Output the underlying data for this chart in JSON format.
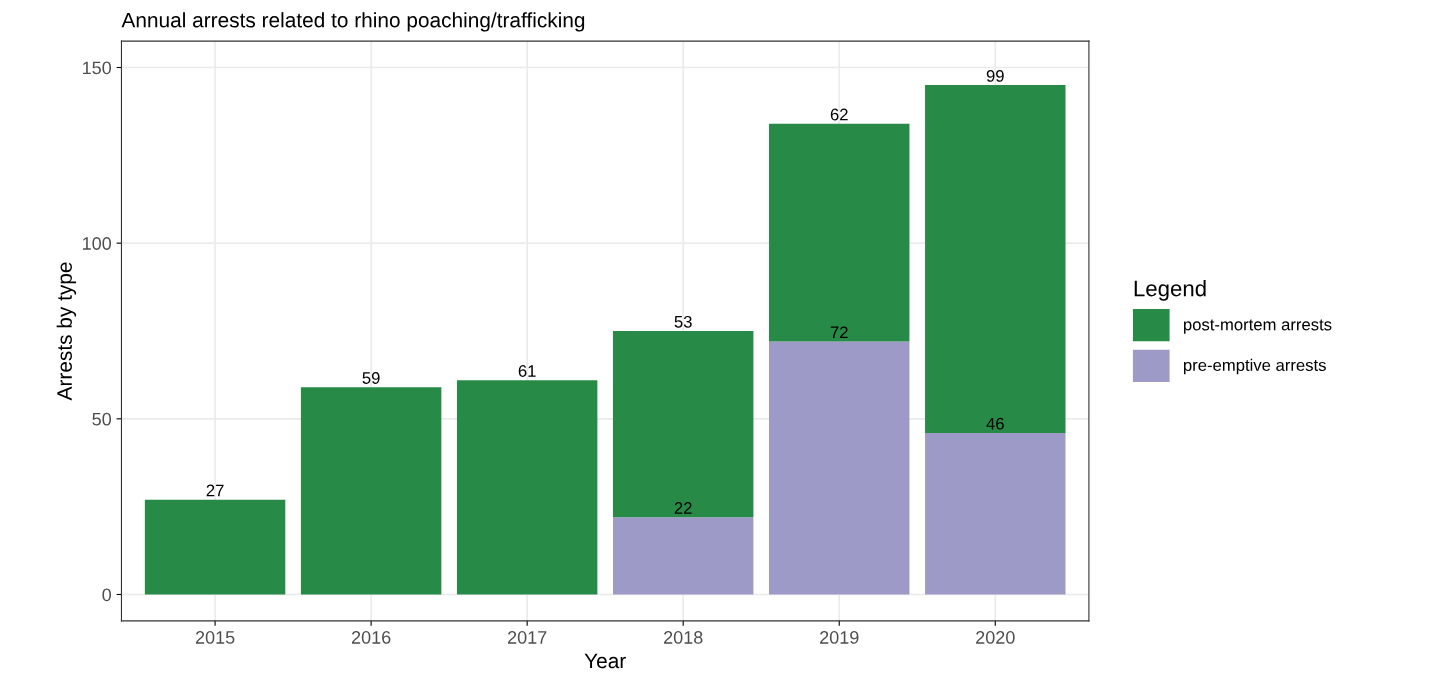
{
  "chart_data": {
    "type": "bar",
    "title": "Annual arrests related to rhino poaching/trafficking",
    "xlabel": "Year",
    "ylabel": "Arrests by type",
    "categories": [
      "2015",
      "2016",
      "2017",
      "2018",
      "2019",
      "2020"
    ],
    "series": [
      {
        "name": "pre-emptive arrests",
        "color": "#9e9ac8",
        "values": [
          null,
          null,
          null,
          22,
          72,
          46
        ]
      },
      {
        "name": "post-mortem arrests",
        "color": "#278a47",
        "values": [
          27,
          59,
          61,
          53,
          62,
          99
        ]
      }
    ],
    "stacked": true,
    "ylim": [
      -7.5,
      157.5
    ],
    "yticks": [
      0,
      50,
      100,
      150
    ],
    "grid": true,
    "legend": "right",
    "legend_title": "Legend",
    "data_labels": true
  }
}
